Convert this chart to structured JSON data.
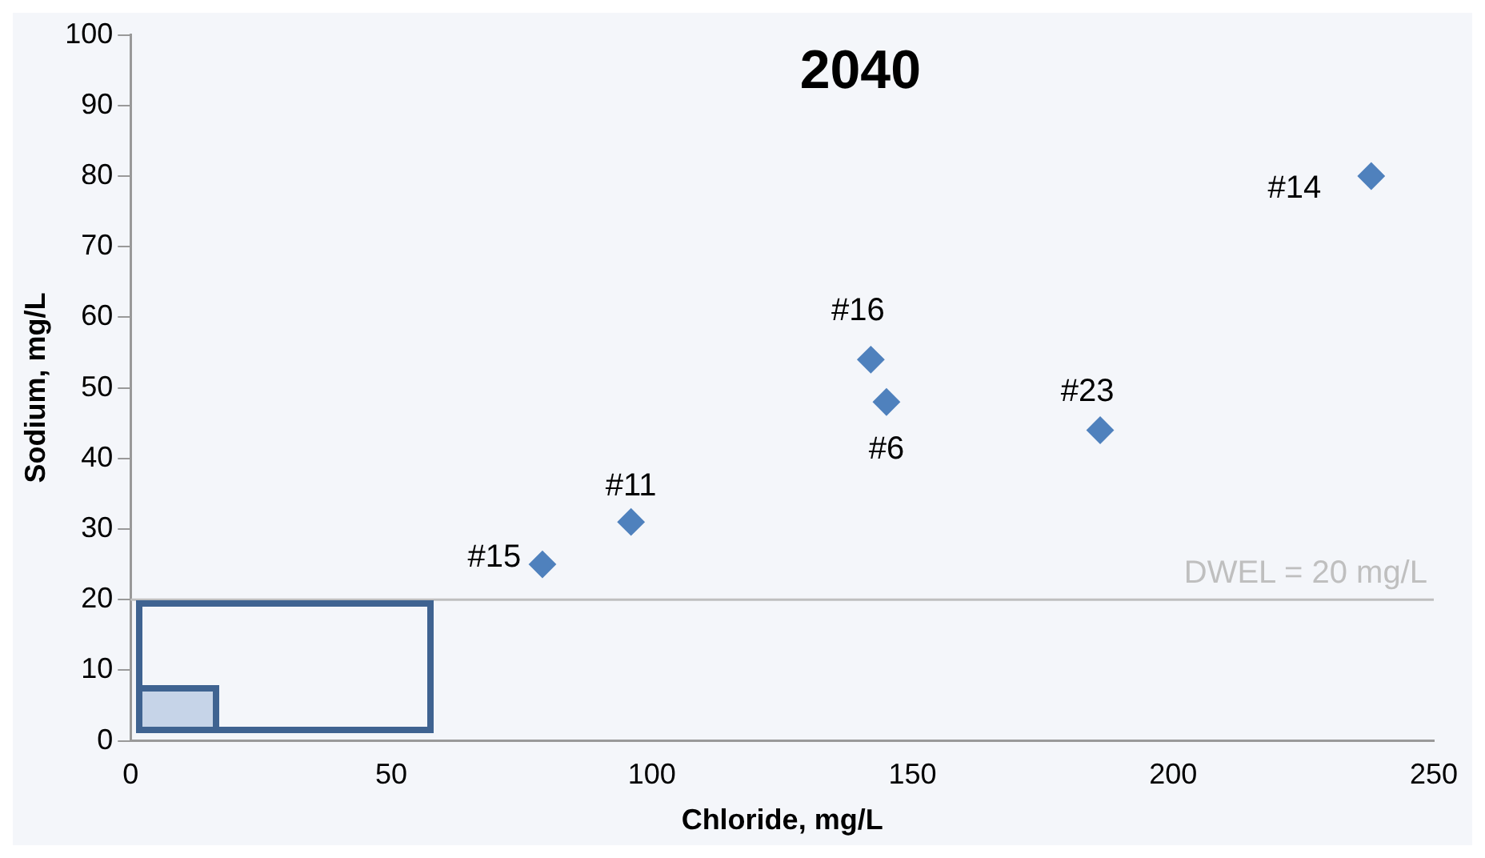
{
  "chart_data": {
    "type": "scatter",
    "title": "2040",
    "xlabel": "Chloride, mg/L",
    "ylabel": "Sodium, mg/L",
    "x": [
      79,
      96,
      142,
      145,
      186,
      238
    ],
    "values": [
      25,
      31,
      54,
      48,
      44,
      80
    ],
    "color": "#4f81bd",
    "marker": "diamond",
    "grid": false,
    "legend": false,
    "xlim": [
      0,
      250
    ],
    "xticks": [
      0,
      50,
      100,
      150,
      200,
      250
    ],
    "ylim": [
      0,
      100
    ],
    "yticks": [
      0,
      10,
      20,
      30,
      40,
      50,
      60,
      70,
      80,
      90,
      100
    ],
    "ref_lines": [
      {
        "axis": "y",
        "value": 20,
        "label": "DWEL = 20 mg/L",
        "color": "#bfbfbf"
      }
    ],
    "annotations": [
      {
        "text": "#15",
        "x": 79,
        "y": 25
      },
      {
        "text": "#11",
        "x": 96,
        "y": 31
      },
      {
        "text": "#16",
        "x": 142,
        "y": 54
      },
      {
        "text": "#6",
        "x": 145,
        "y": 48
      },
      {
        "text": "#23",
        "x": 186,
        "y": 44
      },
      {
        "text": "#14",
        "x": 238,
        "y": 80
      }
    ]
  }
}
